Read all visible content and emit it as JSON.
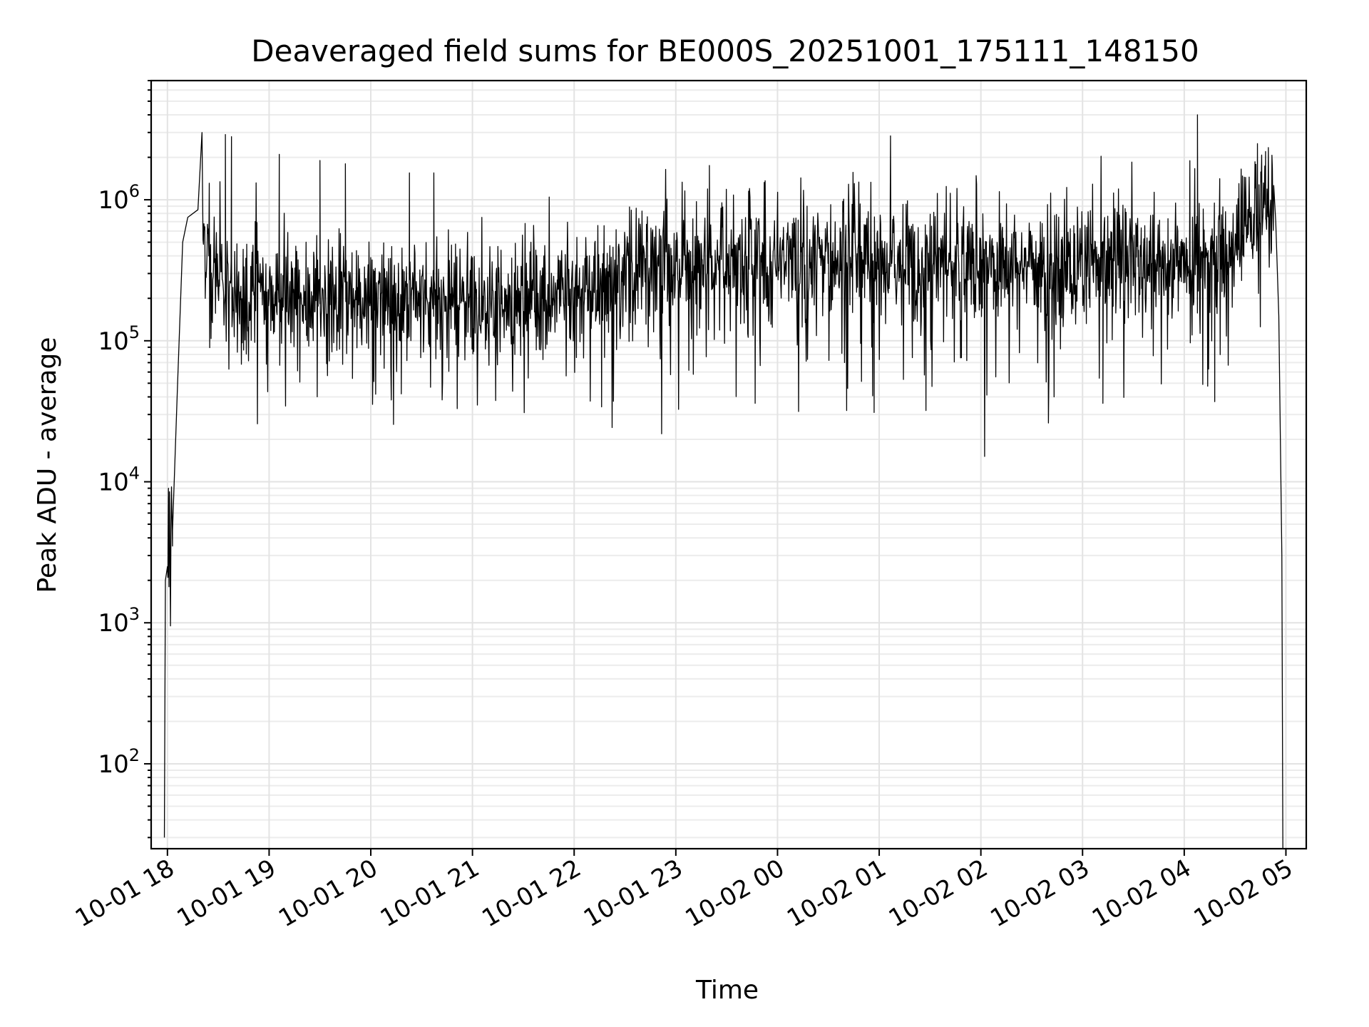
{
  "chart_data": {
    "type": "line",
    "title": "Deaveraged field sums for BE000S_20251001_175111_148150",
    "xlabel": "Time",
    "ylabel": "Peak ADU - average",
    "y_scale": "log",
    "ylim": [
      25,
      7000000
    ],
    "y_ticks": [
      {
        "value": 100,
        "base": "10",
        "exp": "2"
      },
      {
        "value": 1000,
        "base": "10",
        "exp": "3"
      },
      {
        "value": 10000,
        "base": "10",
        "exp": "4"
      },
      {
        "value": 100000,
        "base": "10",
        "exp": "5"
      },
      {
        "value": 1000000,
        "base": "10",
        "exp": "6"
      }
    ],
    "x_unit": "hours since 10-01 18:00",
    "xlim": [
      -0.16,
      11.2
    ],
    "x_ticks": [
      {
        "value": 0,
        "label": "10-01 18"
      },
      {
        "value": 1,
        "label": "10-01 19"
      },
      {
        "value": 2,
        "label": "10-01 20"
      },
      {
        "value": 3,
        "label": "10-01 21"
      },
      {
        "value": 4,
        "label": "10-01 22"
      },
      {
        "value": 5,
        "label": "10-01 23"
      },
      {
        "value": 6,
        "label": "10-02 00"
      },
      {
        "value": 7,
        "label": "10-02 01"
      },
      {
        "value": 8,
        "label": "10-02 02"
      },
      {
        "value": 9,
        "label": "10-02 03"
      },
      {
        "value": 10,
        "label": "10-02 04"
      },
      {
        "value": 11,
        "label": "10-02 05"
      }
    ],
    "grid": true,
    "series": [
      {
        "name": "Deaveraged field sums",
        "baseline_x": [
          -0.03,
          -0.02,
          0.0,
          0.05,
          0.1,
          0.15,
          0.2,
          0.3,
          0.45,
          0.6,
          0.8,
          1.0,
          1.5,
          2.0,
          2.5,
          3.0,
          3.5,
          4.0,
          4.5,
          5.0,
          6.0,
          7.0,
          8.0,
          9.0,
          9.5,
          10.0,
          10.3,
          10.5,
          10.6,
          10.75,
          10.85,
          10.9,
          10.93,
          10.96,
          10.97
        ],
        "baseline_y": [
          30,
          2000,
          2500,
          3500,
          50000,
          500000,
          750000,
          850000,
          300000,
          250000,
          220000,
          210000,
          190000,
          190000,
          200000,
          180000,
          190000,
          220000,
          280000,
          330000,
          350000,
          350000,
          350000,
          350000,
          350000,
          360000,
          380000,
          450000,
          650000,
          950000,
          1000000,
          700000,
          150000,
          3000,
          25
        ],
        "noise_start": 0.35,
        "noise_end": 10.88,
        "noise_points": 2400,
        "peaks": [
          {
            "x": 0.34,
            "y": 3000000
          },
          {
            "x": 0.57,
            "y": 2900000
          },
          {
            "x": 0.63,
            "y": 2800000
          },
          {
            "x": 1.1,
            "y": 2100000
          },
          {
            "x": 1.5,
            "y": 1900000
          },
          {
            "x": 1.75,
            "y": 1800000
          },
          {
            "x": 2.38,
            "y": 1550000
          },
          {
            "x": 2.62,
            "y": 1550000
          },
          {
            "x": 5.33,
            "y": 1750000
          },
          {
            "x": 10.13,
            "y": 4000000
          },
          {
            "x": 10.72,
            "y": 2500000
          },
          {
            "x": 10.8,
            "y": 2200000
          }
        ],
        "dips": [
          {
            "x": 0.03,
            "y": 950
          },
          {
            "x": 2.3,
            "y": 42000
          },
          {
            "x": 2.85,
            "y": 33000
          },
          {
            "x": 4.27,
            "y": 34000
          },
          {
            "x": 5.78,
            "y": 36000
          },
          {
            "x": 6.68,
            "y": 32000
          },
          {
            "x": 6.95,
            "y": 31000
          },
          {
            "x": 7.46,
            "y": 32000
          },
          {
            "x": 8.72,
            "y": 40000
          },
          {
            "x": 9.2,
            "y": 36000
          },
          {
            "x": 10.3,
            "y": 37000
          }
        ]
      }
    ]
  }
}
